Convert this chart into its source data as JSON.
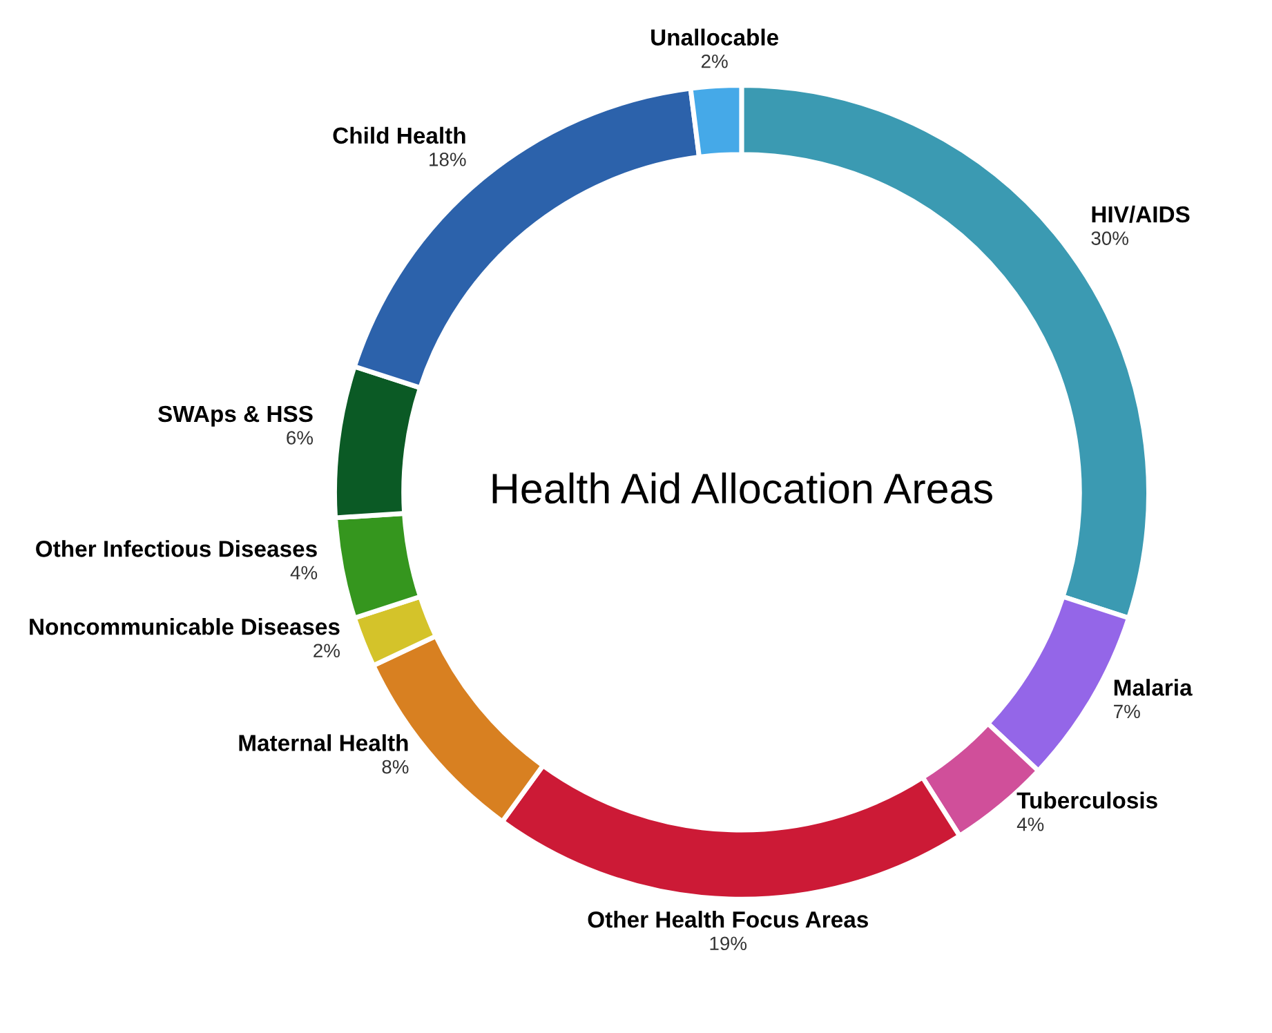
{
  "chart_data": {
    "type": "donut",
    "title": "Health Aid Allocation Areas",
    "categories": [
      "HIV/AIDS",
      "Malaria",
      "Tuberculosis",
      "Other Health Focus Areas",
      "Maternal Health",
      "Noncommunicable Diseases",
      "Other Infectious Diseases",
      "SWAps & HSS",
      "Child Health",
      "Unallocable"
    ],
    "values": [
      30,
      7,
      4,
      19,
      8,
      2,
      4,
      6,
      18,
      2
    ],
    "value_labels": [
      "30%",
      "7%",
      "4%",
      "19%",
      "8%",
      "2%",
      "4%",
      "6%",
      "18%",
      "2%"
    ],
    "colors": [
      "#3b9ab2",
      "#9466e8",
      "#d04f9a",
      "#cc1a36",
      "#d88021",
      "#d4c32a",
      "#35961e",
      "#0b5a25",
      "#2c62ab",
      "#45a9e8"
    ],
    "legend": false
  }
}
